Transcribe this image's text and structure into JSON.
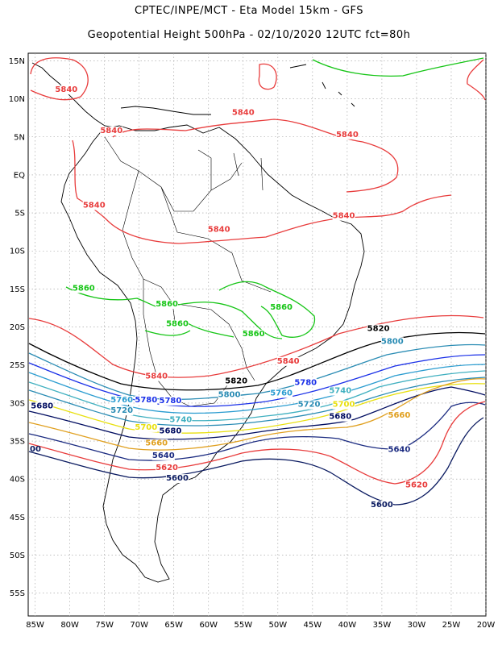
{
  "title": "CPTEC/INPE/MCT -  Eta Model 15km - GFS",
  "subtitle": "Geopotential Height 500hPa - 02/10/2020 12UTC fct=80h",
  "lat_labels": [
    "15N",
    "10N",
    "5N",
    "EQ",
    "5S",
    "10S",
    "15S",
    "20S",
    "25S",
    "30S",
    "35S",
    "40S",
    "45S",
    "50S",
    "55S"
  ],
  "lon_labels": [
    "85W",
    "80W",
    "75W",
    "70W",
    "65W",
    "60W",
    "55W",
    "50W",
    "45W",
    "40W",
    "35W",
    "30W",
    "25W",
    "20W"
  ],
  "map": {
    "lat_range": [
      -58,
      16
    ],
    "lon_range": [
      -86,
      -20
    ],
    "grid": true
  },
  "contours": [
    {
      "value": "5860",
      "color": "#16c516",
      "labels": [
        {
          "lon": -78,
          "lat": -15.2
        },
        {
          "lon": -66,
          "lat": -17.3
        },
        {
          "lon": -64.5,
          "lat": -19.9
        },
        {
          "lon": -49.5,
          "lat": -17.7
        },
        {
          "lon": -53.5,
          "lat": -21.2
        }
      ]
    },
    {
      "value": "5840",
      "color": "#e83c3c",
      "labels": [
        {
          "lon": -80.5,
          "lat": 10.9
        },
        {
          "lon": -74,
          "lat": 5.5
        },
        {
          "lon": -55,
          "lat": 7.9
        },
        {
          "lon": -40,
          "lat": 5
        },
        {
          "lon": -76.5,
          "lat": -4.3
        },
        {
          "lon": -58.5,
          "lat": -7.5
        },
        {
          "lon": -40.5,
          "lat": -5.7
        },
        {
          "lon": -67.5,
          "lat": -26.8
        },
        {
          "lon": -48.5,
          "lat": -24.8
        }
      ]
    },
    {
      "value": "5820",
      "color": "#000000",
      "labels": [
        {
          "lon": -35.5,
          "lat": -20.5
        },
        {
          "lon": -56,
          "lat": -27.4
        }
      ]
    },
    {
      "value": "5800",
      "color": "#2a8cb4",
      "labels": [
        {
          "lon": -33.5,
          "lat": -22.2
        },
        {
          "lon": -57,
          "lat": -29.2
        }
      ]
    },
    {
      "value": "5780",
      "color": "#1a30e8",
      "labels": [
        {
          "lon": -46,
          "lat": -27.6
        },
        {
          "lon": -69,
          "lat": -29.9
        },
        {
          "lon": -65.5,
          "lat": -30
        }
      ]
    },
    {
      "value": "5760",
      "color": "#2a9cd0",
      "labels": [
        {
          "lon": -49.5,
          "lat": -29
        },
        {
          "lon": -72.5,
          "lat": -29.9
        }
      ]
    },
    {
      "value": "5740",
      "color": "#40b0c0",
      "labels": [
        {
          "lon": -41,
          "lat": -28.7
        },
        {
          "lon": -64,
          "lat": -32.5
        }
      ]
    },
    {
      "value": "5720",
      "color": "#2a8cb4",
      "labels": [
        {
          "lon": -72.5,
          "lat": -31.3
        },
        {
          "lon": -45.5,
          "lat": -30.5
        }
      ]
    },
    {
      "value": "5700",
      "color": "#e8e010",
      "labels": [
        {
          "lon": -69,
          "lat": -33.5
        },
        {
          "lon": -40.5,
          "lat": -30.5
        }
      ]
    },
    {
      "value": "5680",
      "color": "#000c60",
      "labels": [
        {
          "lon": -84,
          "lat": -30.7
        },
        {
          "lon": -65.5,
          "lat": -34
        },
        {
          "lon": -41,
          "lat": -32.1
        }
      ]
    },
    {
      "value": "5660",
      "color": "#e0a020",
      "labels": [
        {
          "lon": -67.5,
          "lat": -35.6
        },
        {
          "lon": -32.5,
          "lat": -31.9
        }
      ]
    },
    {
      "value": "5640",
      "color": "#1a2a80",
      "labels": [
        {
          "lon": -66.5,
          "lat": -37.2
        },
        {
          "lon": -32.5,
          "lat": -36.4
        }
      ]
    },
    {
      "value": "5620",
      "color": "#e83c3c",
      "labels": [
        {
          "lon": -66,
          "lat": -38.8
        },
        {
          "lon": -30,
          "lat": -41.1
        }
      ]
    },
    {
      "value": "5600",
      "color": "#0a1a60",
      "labels": [
        {
          "lon": -64.5,
          "lat": -40.2
        },
        {
          "lon": -35,
          "lat": -43.7
        }
      ]
    }
  ],
  "edge_label": "00"
}
